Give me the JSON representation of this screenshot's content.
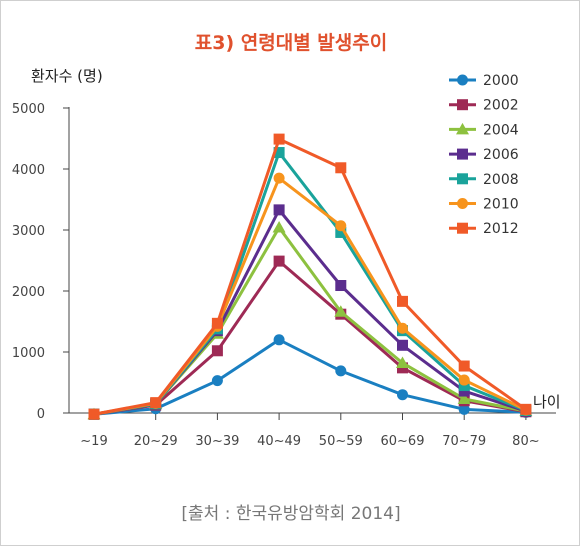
{
  "chart_data": {
    "type": "line",
    "title": "표3) 연령대별 발생추이",
    "ylabel": "환자수 (명)",
    "xlabel": "나이",
    "source": "[출처 : 한국유방암학회 2014]",
    "categories": [
      "~19",
      "20~29",
      "30~39",
      "40~49",
      "50~59",
      "60~69",
      "70~79",
      "80~"
    ],
    "yticks": [
      0,
      1000,
      2000,
      3000,
      4000,
      5000
    ],
    "ylim": [
      0,
      5000
    ],
    "grid": false,
    "legend_position": "top-right",
    "series": [
      {
        "name": "2000",
        "color": "#1a7fc1",
        "marker": "circle",
        "values": [
          -20,
          70,
          530,
          1200,
          690,
          300,
          60,
          10
        ]
      },
      {
        "name": "2002",
        "color": "#9e2a55",
        "marker": "square",
        "values": [
          -20,
          130,
          1020,
          2490,
          1620,
          740,
          200,
          20
        ]
      },
      {
        "name": "2004",
        "color": "#8dc13f",
        "marker": "triangle",
        "values": [
          -20,
          150,
          1300,
          3040,
          1660,
          820,
          230,
          30
        ]
      },
      {
        "name": "2006",
        "color": "#5b2d8e",
        "marker": "square",
        "values": [
          -20,
          150,
          1350,
          3330,
          2090,
          1110,
          360,
          30
        ]
      },
      {
        "name": "2008",
        "color": "#1aa39b",
        "marker": "square",
        "values": [
          -20,
          150,
          1380,
          4270,
          2960,
          1350,
          450,
          40
        ]
      },
      {
        "name": "2010",
        "color": "#f7941d",
        "marker": "circle",
        "values": [
          -20,
          160,
          1420,
          3850,
          3070,
          1390,
          540,
          50
        ]
      },
      {
        "name": "2012",
        "color": "#f05a28",
        "marker": "square",
        "values": [
          -20,
          170,
          1470,
          4490,
          4020,
          1830,
          770,
          60
        ]
      }
    ]
  }
}
